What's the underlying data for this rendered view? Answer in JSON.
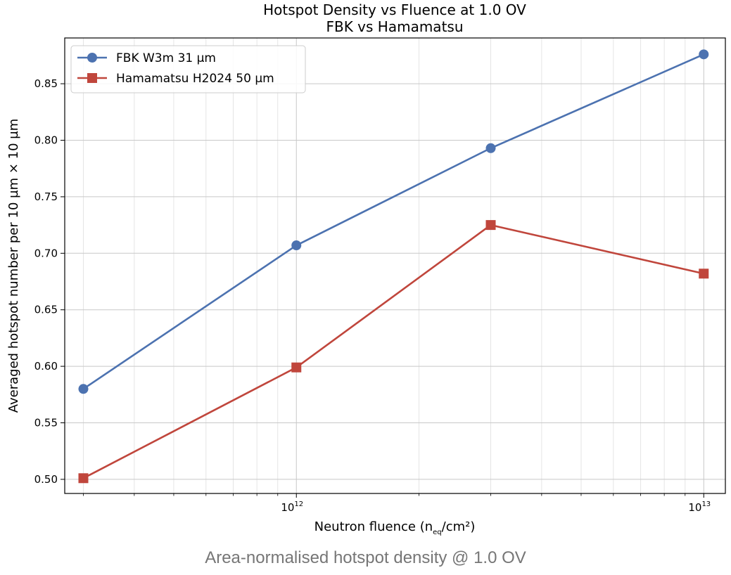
{
  "caption": "Area-normalised hotspot density @ 1.0 OV",
  "chart_data": {
    "type": "line",
    "title": "Hotspot Density vs Fluence at 1.0 OV",
    "subtitle": "FBK vs Hamamatsu",
    "xlabel_main": "Neutron fluence (n",
    "xlabel_sub": "eq",
    "xlabel_tail": "/cm²)",
    "ylabel": "Averaged hotspot number per 10 µm × 10 µm",
    "xscale": "log",
    "xlim": [
      270000000000.0,
      11300000000000.0
    ],
    "ylim": [
      0.4875,
      0.8905
    ],
    "xticks": [
      {
        "value": 1000000000000.0,
        "base": "10",
        "exp": "12"
      },
      {
        "value": 10000000000000.0,
        "base": "10",
        "exp": "13"
      }
    ],
    "yticks": [
      "0.50",
      "0.55",
      "0.60",
      "0.65",
      "0.70",
      "0.75",
      "0.80",
      "0.85"
    ],
    "grid": true,
    "legend_position": "top-left",
    "series": [
      {
        "name": "FBK W3m 31 µm",
        "color": "#4c72b0",
        "marker": "circle",
        "x": [
          300000000000.0,
          1000000000000.0,
          3000000000000.0,
          10000000000000.0
        ],
        "y": [
          0.58,
          0.707,
          0.793,
          0.876
        ]
      },
      {
        "name": "Hamamatsu H2024 50 µm",
        "color": "#c0463c",
        "marker": "square",
        "x": [
          300000000000.0,
          1000000000000.0,
          3000000000000.0,
          10000000000000.0
        ],
        "y": [
          0.501,
          0.599,
          0.725,
          0.682
        ]
      }
    ]
  }
}
